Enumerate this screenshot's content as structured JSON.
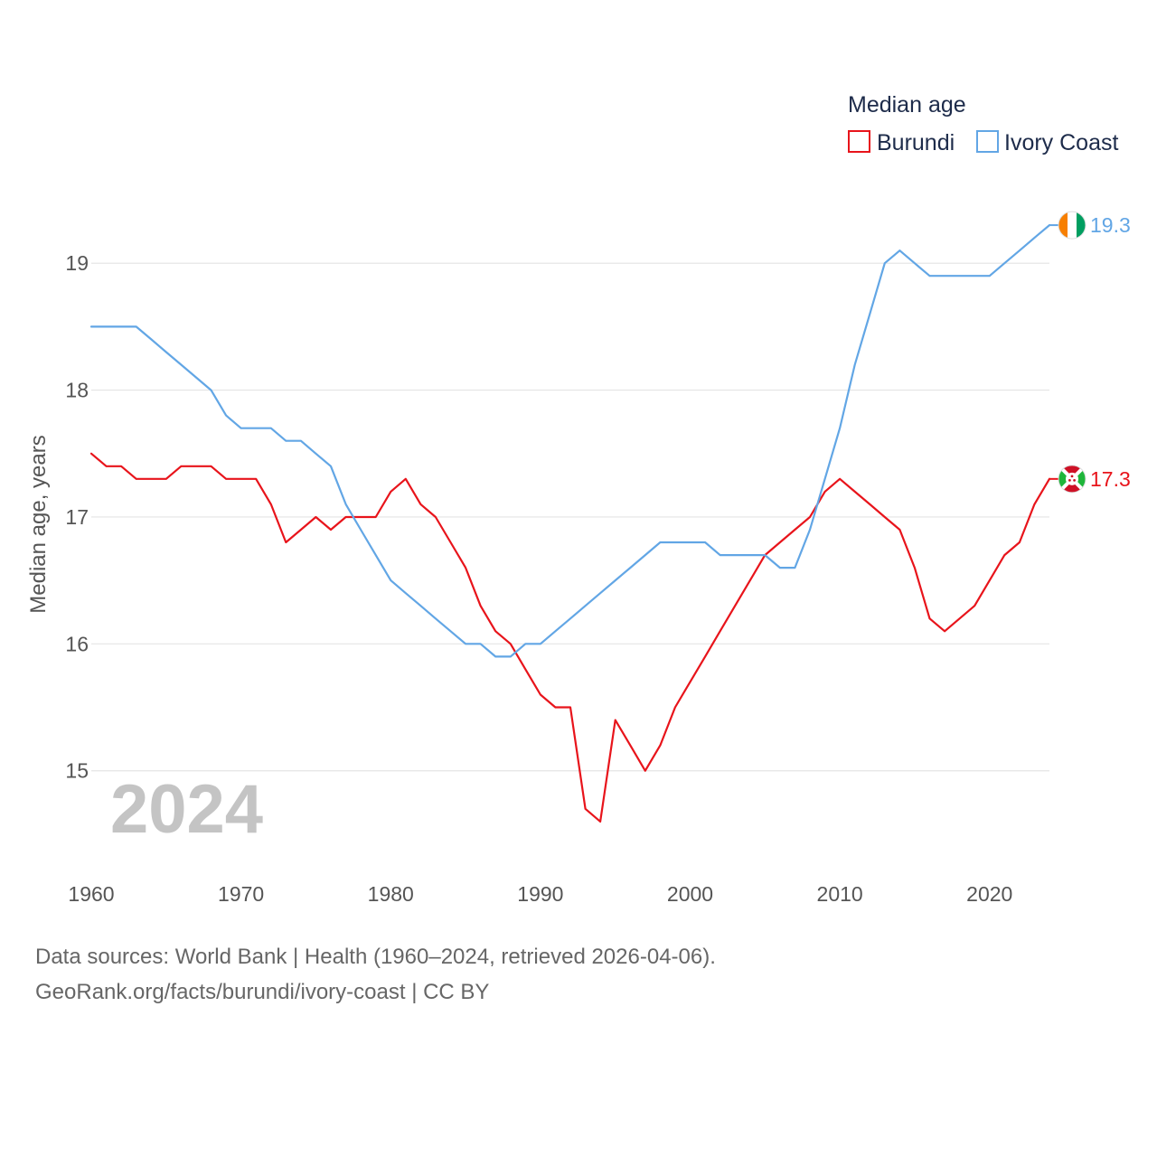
{
  "chart_data": {
    "type": "line",
    "ylabel": "Median age, years",
    "xlabel": "",
    "legend_title": "Median age",
    "legend_position": "top-right",
    "current_year_label": "2024",
    "xlim": [
      1960,
      2024
    ],
    "ylim": [
      14.25,
      19.5
    ],
    "x_ticks": [
      1960,
      1970,
      1980,
      1990,
      2000,
      2010,
      2020
    ],
    "y_ticks": [
      15,
      16,
      17,
      18,
      19
    ],
    "grid": true,
    "x": [
      1960,
      1961,
      1962,
      1963,
      1964,
      1965,
      1966,
      1967,
      1968,
      1969,
      1970,
      1971,
      1972,
      1973,
      1974,
      1975,
      1976,
      1977,
      1978,
      1979,
      1980,
      1981,
      1982,
      1983,
      1984,
      1985,
      1986,
      1987,
      1988,
      1989,
      1990,
      1991,
      1992,
      1993,
      1994,
      1995,
      1996,
      1997,
      1998,
      1999,
      2000,
      2001,
      2002,
      2003,
      2004,
      2005,
      2006,
      2007,
      2008,
      2009,
      2010,
      2011,
      2012,
      2013,
      2014,
      2015,
      2016,
      2017,
      2018,
      2019,
      2020,
      2021,
      2022,
      2023,
      2024
    ],
    "series": [
      {
        "name": "Burundi",
        "color": "#e8141b",
        "end_label": "17.3",
        "flag": "burundi",
        "values": [
          17.5,
          17.4,
          17.4,
          17.3,
          17.3,
          17.3,
          17.4,
          17.4,
          17.4,
          17.3,
          17.3,
          17.3,
          17.1,
          16.8,
          16.9,
          17.0,
          16.9,
          17.0,
          17.0,
          17.0,
          17.2,
          17.3,
          17.1,
          17.0,
          16.8,
          16.6,
          16.3,
          16.1,
          16.0,
          15.8,
          15.6,
          15.5,
          15.5,
          14.7,
          14.6,
          15.4,
          15.2,
          15.0,
          15.2,
          15.5,
          15.7,
          15.9,
          16.1,
          16.3,
          16.5,
          16.7,
          16.8,
          16.9,
          17.0,
          17.2,
          17.3,
          17.2,
          17.1,
          17.0,
          16.9,
          16.6,
          16.2,
          16.1,
          16.2,
          16.3,
          16.5,
          16.7,
          16.8,
          17.1,
          17.3
        ]
      },
      {
        "name": "Ivory Coast",
        "color": "#62a6e5",
        "end_label": "19.3",
        "flag": "ivory-coast",
        "values": [
          18.5,
          18.5,
          18.5,
          18.5,
          18.4,
          18.3,
          18.2,
          18.1,
          18.0,
          17.8,
          17.7,
          17.7,
          17.7,
          17.6,
          17.6,
          17.5,
          17.4,
          17.1,
          16.9,
          16.7,
          16.5,
          16.4,
          16.3,
          16.2,
          16.1,
          16.0,
          16.0,
          15.9,
          15.9,
          16.0,
          16.0,
          16.1,
          16.2,
          16.3,
          16.4,
          16.5,
          16.6,
          16.7,
          16.8,
          16.8,
          16.8,
          16.8,
          16.7,
          16.7,
          16.7,
          16.7,
          16.6,
          16.6,
          16.9,
          17.3,
          17.7,
          18.2,
          18.6,
          19.0,
          19.1,
          19.0,
          18.9,
          18.9,
          18.9,
          18.9,
          18.9,
          19.0,
          19.1,
          19.2,
          19.3
        ]
      }
    ]
  },
  "footer": {
    "line1": "Data sources: World Bank | Health (1960–2024, retrieved 2026-04-06).",
    "line2": "GeoRank.org/facts/burundi/ivory-coast | CC BY"
  }
}
